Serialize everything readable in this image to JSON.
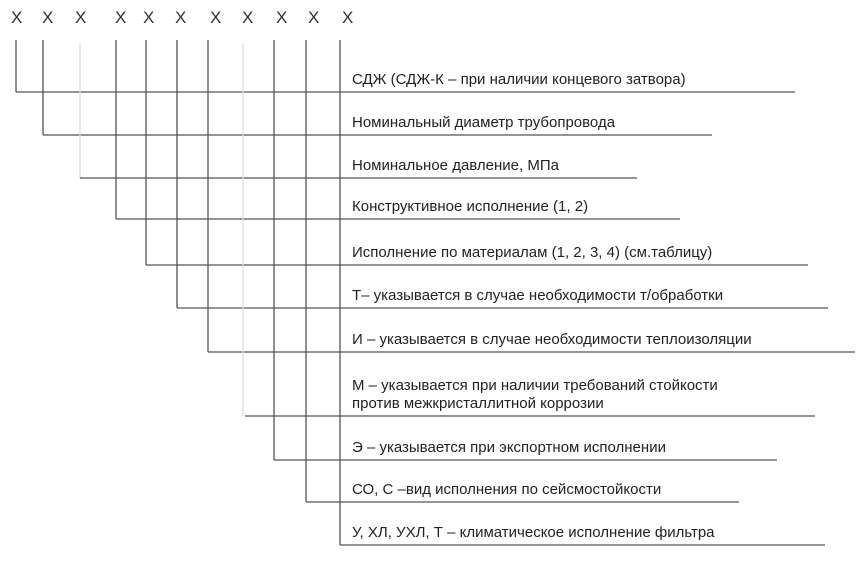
{
  "code_positions": [
    "X",
    "X",
    "X",
    "X",
    "X",
    "X",
    "X",
    "X",
    "X",
    "X",
    "X"
  ],
  "items": [
    {
      "text": "СДЖ (СДЖ-К – при наличии концевого затвора)"
    },
    {
      "text": "Номинальный диаметр трубопровода"
    },
    {
      "text": "Номинальное давление, МПа"
    },
    {
      "text": "Конструктивное исполнение (1, 2)"
    },
    {
      "text": "Исполнение по материалам (1, 2, 3, 4) (см.таблицу)"
    },
    {
      "text": "Т– указывается в случае необходимости т/обработки"
    },
    {
      "text": "И – указывается в случае необходимости теплоизоляции"
    },
    {
      "text": "М – указывается при наличии требований стойкости\nпротив межкристаллитной коррозии"
    },
    {
      "text": "Э – указывается при экспортном исполнении"
    },
    {
      "text": "СО, С –вид исполнения по сейсмостойкости"
    },
    {
      "text": "У, ХЛ, УХЛ, Т – климатическое исполнение фильтра"
    }
  ],
  "line_color": "#555555"
}
